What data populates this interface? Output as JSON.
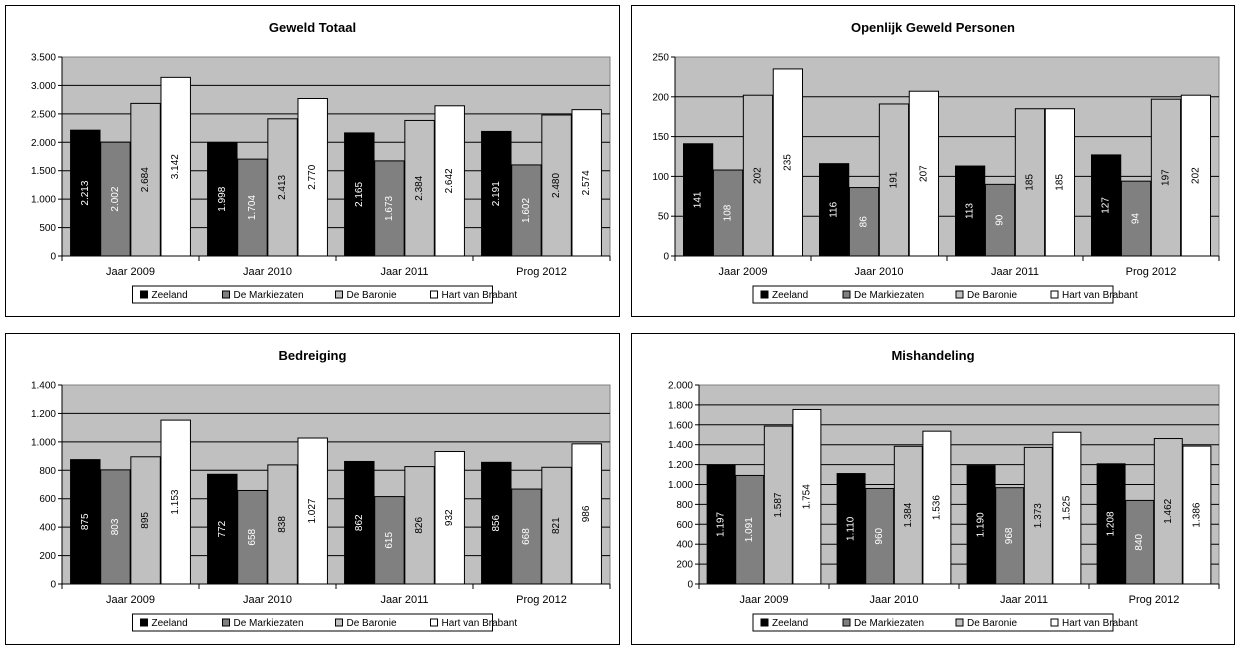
{
  "chart_data": [
    {
      "type": "bar",
      "title": "Geweld Totaal",
      "categories": [
        "Jaar 2009",
        "Jaar 2010",
        "Jaar 2011",
        "Prog 2012"
      ],
      "series": [
        {
          "name": "Zeeland",
          "color": "#000000",
          "values": [
            2213,
            1998,
            2165,
            2191
          ],
          "labels": [
            "2.213",
            "1.998",
            "2.165",
            "2.191"
          ]
        },
        {
          "name": "De Markiezaten",
          "color": "#808080",
          "values": [
            2002,
            1704,
            1673,
            1602
          ],
          "labels": [
            "2.002",
            "1.704",
            "1.673",
            "1.602"
          ]
        },
        {
          "name": "De Baronie",
          "color": "#c0c0c0",
          "values": [
            2684,
            2413,
            2384,
            2480
          ],
          "labels": [
            "2.684",
            "2.413",
            "2.384",
            "2.480"
          ]
        },
        {
          "name": "Hart van Brabant",
          "color": "#ffffff",
          "values": [
            3142,
            2770,
            2642,
            2574
          ],
          "labels": [
            "3.142",
            "2.770",
            "2.642",
            "2.574"
          ]
        }
      ],
      "ylim": [
        0,
        3500
      ],
      "yticks": [
        0,
        500,
        1000,
        1500,
        2000,
        2500,
        3000,
        3500
      ],
      "ytick_labels": [
        "0",
        "500",
        "1.000",
        "1.500",
        "2.000",
        "2.500",
        "3.000",
        "3.500"
      ],
      "grid": true,
      "legend": "bottom"
    },
    {
      "type": "bar",
      "title": "Openlijk Geweld Personen",
      "categories": [
        "Jaar 2009",
        "Jaar 2010",
        "Jaar 2011",
        "Prog 2012"
      ],
      "series": [
        {
          "name": "Zeeland",
          "color": "#000000",
          "values": [
            141,
            116,
            113,
            127
          ],
          "labels": [
            "141",
            "116",
            "113",
            "127"
          ]
        },
        {
          "name": "De Markiezaten",
          "color": "#808080",
          "values": [
            108,
            86,
            90,
            94
          ],
          "labels": [
            "108",
            "86",
            "90",
            "94"
          ]
        },
        {
          "name": "De Baronie",
          "color": "#c0c0c0",
          "values": [
            202,
            191,
            185,
            197
          ],
          "labels": [
            "202",
            "191",
            "185",
            "197"
          ]
        },
        {
          "name": "Hart van Brabant",
          "color": "#ffffff",
          "values": [
            235,
            207,
            185,
            202
          ],
          "labels": [
            "235",
            "207",
            "185",
            "202"
          ]
        }
      ],
      "ylim": [
        0,
        250
      ],
      "yticks": [
        0,
        50,
        100,
        150,
        200,
        250
      ],
      "ytick_labels": [
        "0",
        "50",
        "100",
        "150",
        "200",
        "250"
      ],
      "grid": true,
      "legend": "bottom"
    },
    {
      "type": "bar",
      "title": "Bedreiging",
      "categories": [
        "Jaar 2009",
        "Jaar 2010",
        "Jaar 2011",
        "Prog 2012"
      ],
      "series": [
        {
          "name": "Zeeland",
          "color": "#000000",
          "values": [
            875,
            772,
            862,
            856
          ],
          "labels": [
            "875",
            "772",
            "862",
            "856"
          ]
        },
        {
          "name": "De Markiezaten",
          "color": "#808080",
          "values": [
            803,
            658,
            615,
            668
          ],
          "labels": [
            "803",
            "658",
            "615",
            "668"
          ]
        },
        {
          "name": "De Baronie",
          "color": "#c0c0c0",
          "values": [
            895,
            838,
            826,
            821
          ],
          "labels": [
            "895",
            "838",
            "826",
            "821"
          ]
        },
        {
          "name": "Hart van Brabant",
          "color": "#ffffff",
          "values": [
            1153,
            1027,
            932,
            986
          ],
          "labels": [
            "1.153",
            "1.027",
            "932",
            "986"
          ]
        }
      ],
      "ylim": [
        0,
        1400
      ],
      "yticks": [
        0,
        200,
        400,
        600,
        800,
        1000,
        1200,
        1400
      ],
      "ytick_labels": [
        "0",
        "200",
        "400",
        "600",
        "800",
        "1.000",
        "1.200",
        "1.400"
      ],
      "grid": true,
      "legend": "bottom"
    },
    {
      "type": "bar",
      "title": "Mishandeling",
      "categories": [
        "Jaar 2009",
        "Jaar 2010",
        "Jaar 2011",
        "Prog 2012"
      ],
      "series": [
        {
          "name": "Zeeland",
          "color": "#000000",
          "values": [
            1197,
            1110,
            1190,
            1208
          ],
          "labels": [
            "1.197",
            "1.110",
            "1.190",
            "1.208"
          ]
        },
        {
          "name": "De Markiezaten",
          "color": "#808080",
          "values": [
            1091,
            960,
            968,
            840
          ],
          "labels": [
            "1.091",
            "960",
            "968",
            "840"
          ]
        },
        {
          "name": "De Baronie",
          "color": "#c0c0c0",
          "values": [
            1587,
            1384,
            1373,
            1462
          ],
          "labels": [
            "1.587",
            "1.384",
            "1.373",
            "1.462"
          ]
        },
        {
          "name": "Hart van Brabant",
          "color": "#ffffff",
          "values": [
            1754,
            1536,
            1525,
            1386
          ],
          "labels": [
            "1.754",
            "1.536",
            "1.525",
            "1.386"
          ]
        }
      ],
      "ylim": [
        0,
        2000
      ],
      "yticks": [
        0,
        200,
        400,
        600,
        800,
        1000,
        1200,
        1400,
        1600,
        1800,
        2000
      ],
      "ytick_labels": [
        "0",
        "200",
        "400",
        "600",
        "800",
        "1.000",
        "1.200",
        "1.400",
        "1.600",
        "1.800",
        "2.000"
      ],
      "grid": true,
      "legend": "bottom"
    }
  ],
  "colors": {
    "plot_background": "#c0c0c0",
    "axis": "#000000"
  }
}
